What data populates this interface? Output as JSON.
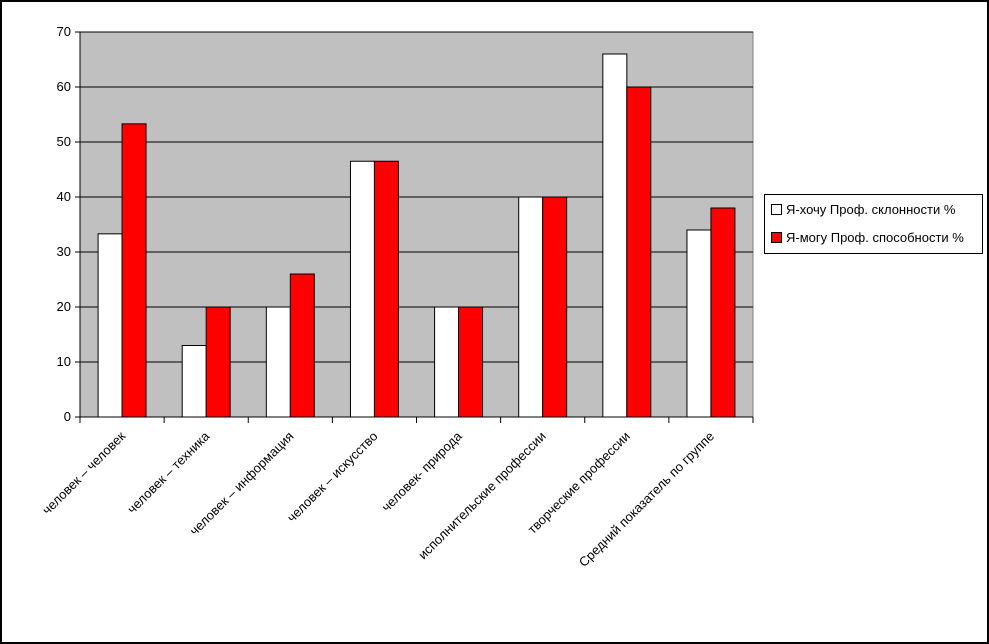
{
  "colors": {
    "plot_background": "#c0c0c0",
    "series_1": "#ffffff",
    "series_2": "#ff0000",
    "gridline": "#000000"
  },
  "chart_data": {
    "type": "bar",
    "categories": [
      "человек – человек",
      "человек – техника",
      "человек – информация",
      "человек – искусство",
      "человек- природа",
      "исполнительские профессии",
      "творческие профессии",
      "Средний показатель по группе"
    ],
    "series": [
      {
        "name": "Я-хочу Проф. склонности %",
        "color": "#ffffff",
        "values": [
          33.3,
          13,
          20,
          46.5,
          20,
          40,
          66,
          34
        ]
      },
      {
        "name": "Я-могу Проф. способности %",
        "color": "#ff0000",
        "values": [
          53.3,
          20,
          26,
          46.5,
          20,
          40,
          60,
          38
        ]
      }
    ],
    "y_ticks": [
      "0",
      "10",
      "20",
      "30",
      "40",
      "50",
      "60",
      "70"
    ],
    "ylim": [
      0,
      70
    ],
    "grid": true,
    "legend_position": "right"
  }
}
